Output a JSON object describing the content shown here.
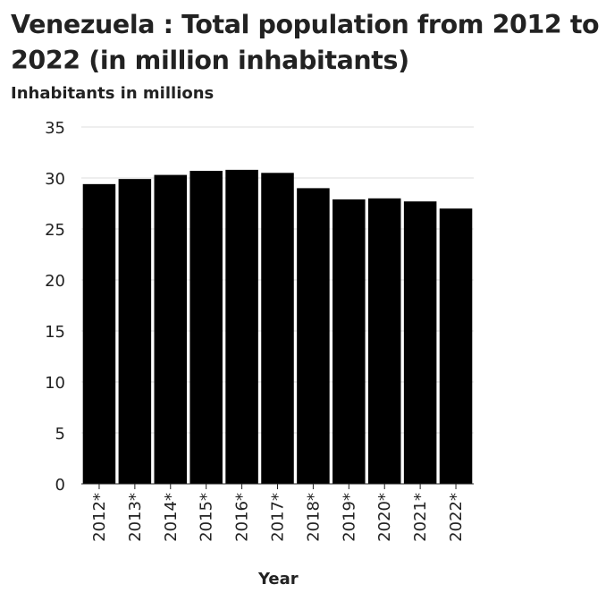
{
  "chart_data": {
    "type": "bar",
    "title": "Venezuela : Total population from 2012 to 2022 (in million inhabitants)",
    "xlabel": "Year",
    "ylabel": "Inhabitants in millions",
    "categories": [
      "2012*",
      "2013*",
      "2014*",
      "2015*",
      "2016*",
      "2017*",
      "2018*",
      "2019*",
      "2020*",
      "2021*",
      "2022*"
    ],
    "values": [
      29.4,
      29.9,
      30.3,
      30.7,
      30.8,
      30.5,
      29.0,
      27.9,
      28.0,
      27.7,
      27.0
    ],
    "ylim": [
      0,
      35
    ],
    "yticks": [
      0,
      5,
      10,
      15,
      20,
      25,
      30,
      35
    ],
    "grid": true,
    "legend": "none",
    "bar_color": "#000000",
    "grid_color": "#dcdcdc"
  }
}
